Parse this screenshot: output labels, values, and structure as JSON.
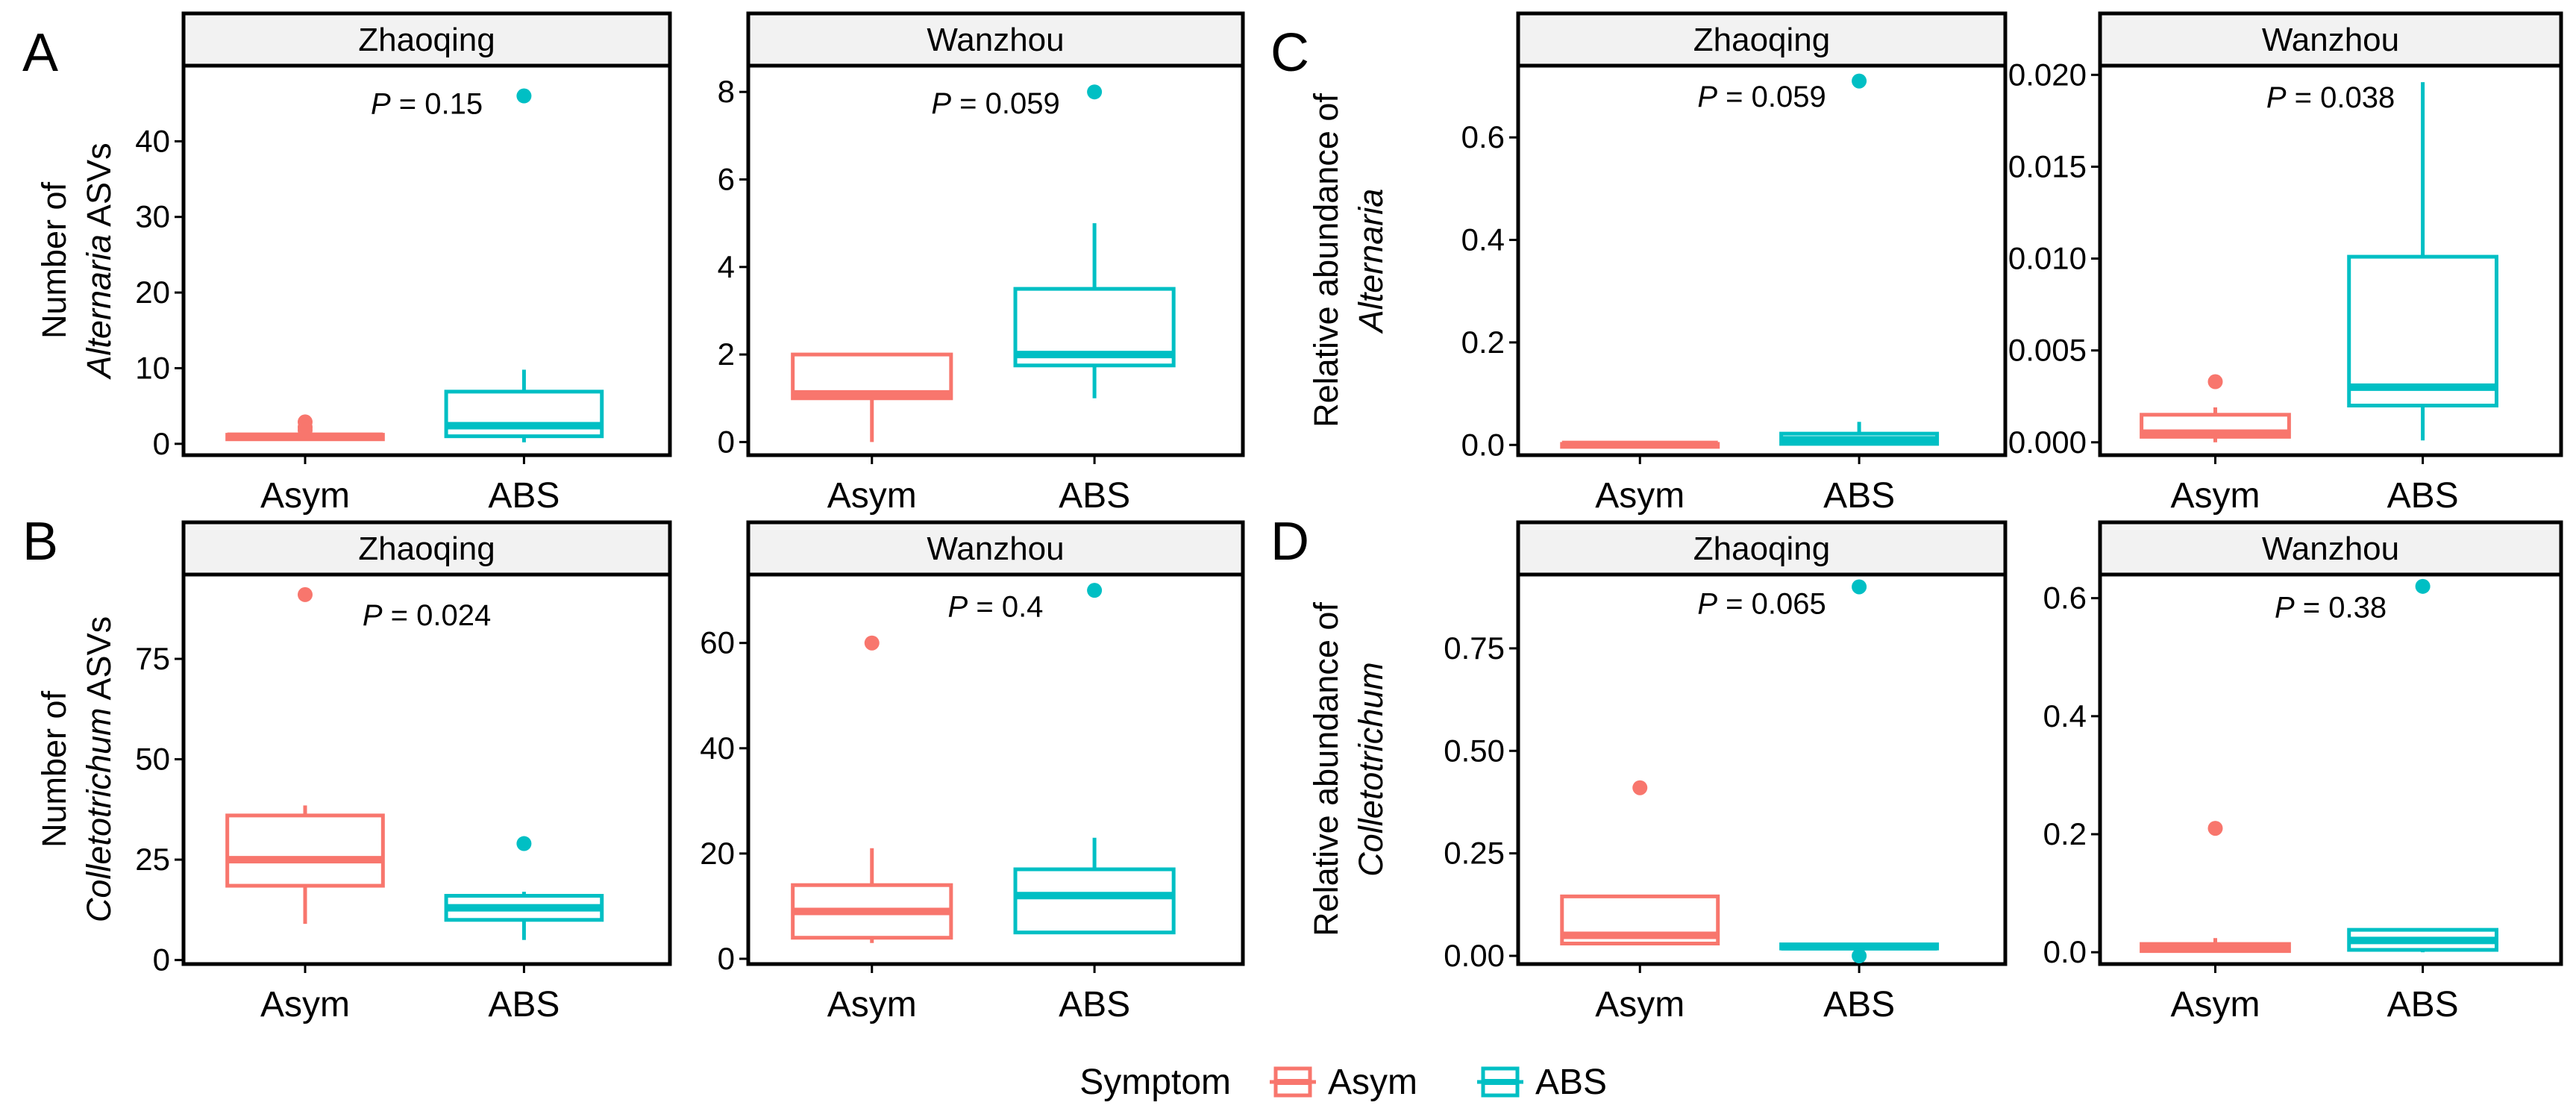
{
  "chart_data": [
    {
      "id": "A-zhaoqing",
      "panel_letter": "A",
      "type": "boxplot",
      "facet": "Zhaoqing",
      "y_title_line1": "Number of",
      "y_title_italic": "Alternaria",
      "y_title_suffix": " ASVs",
      "ylim": [
        -1.5,
        50
      ],
      "yticks": [
        0,
        10,
        20,
        30,
        40
      ],
      "ytick_labels": [
        "0",
        "10",
        "20",
        "30",
        "40"
      ],
      "categories": [
        "Asym",
        "ABS"
      ],
      "p_prefix": "P",
      "p_text": " = 0.15",
      "p_y": 45,
      "boxes": [
        {
          "group": "Asym",
          "whisker_low": 0.5,
          "q1": 0.6,
          "median": 1,
          "q3": 1.2,
          "whisker_high": 1.5,
          "outliers": [
            2.9,
            2.2,
            1.8
          ]
        },
        {
          "group": "ABS",
          "whisker_low": 0.2,
          "q1": 1,
          "median": 2.4,
          "q3": 6.9,
          "whisker_high": 9.8,
          "outliers": [
            46
          ]
        }
      ]
    },
    {
      "id": "A-wanzhou",
      "type": "boxplot",
      "facet": "Wanzhou",
      "ylim": [
        -0.3,
        8.6
      ],
      "yticks": [
        0,
        2,
        4,
        6,
        8
      ],
      "ytick_labels": [
        "0",
        "2",
        "4",
        "6",
        "8"
      ],
      "categories": [
        "Asym",
        "ABS"
      ],
      "p_prefix": "P",
      "p_text": " = 0.059",
      "p_y": 7.75,
      "boxes": [
        {
          "group": "Asym",
          "whisker_low": 0,
          "q1": 1,
          "median": 1.1,
          "q3": 2,
          "whisker_high": 2,
          "outliers": []
        },
        {
          "group": "ABS",
          "whisker_low": 1,
          "q1": 1.75,
          "median": 2,
          "q3": 3.5,
          "whisker_high": 5,
          "outliers": [
            8
          ]
        }
      ]
    },
    {
      "id": "C-zhaoqing",
      "panel_letter": "C",
      "type": "boxplot",
      "facet": "Zhaoqing",
      "y_title_line1": "Relative abundance of",
      "y_title_italic": "Alternaria",
      "ylim": [
        -0.02,
        0.74
      ],
      "yticks": [
        0,
        0.2,
        0.4,
        0.6
      ],
      "ytick_labels": [
        "0.0",
        "0.2",
        "0.4",
        "0.6"
      ],
      "categories": [
        "Asym",
        "ABS"
      ],
      "p_prefix": "P",
      "p_text": " = 0.059",
      "p_y": 0.68,
      "boxes": [
        {
          "group": "Asym",
          "whisker_low": 0,
          "q1": 0,
          "median": 0.001,
          "q3": 0.002,
          "whisker_high": 0.004,
          "outliers": []
        },
        {
          "group": "ABS",
          "whisker_low": 0,
          "q1": 0.002,
          "median": 0.01,
          "q3": 0.022,
          "whisker_high": 0.045,
          "outliers": [
            0.71
          ]
        }
      ]
    },
    {
      "id": "C-wanzhou",
      "type": "boxplot",
      "facet": "Wanzhou",
      "ylim": [
        -0.0007,
        0.0205
      ],
      "yticks": [
        0,
        0.005,
        0.01,
        0.015,
        0.02
      ],
      "ytick_labels": [
        "0.000",
        "0.005",
        "0.010",
        "0.015",
        "0.020"
      ],
      "categories": [
        "Asym",
        "ABS"
      ],
      "p_prefix": "P",
      "p_text": " = 0.038",
      "p_y": 0.0188,
      "boxes": [
        {
          "group": "Asym",
          "whisker_low": 0,
          "q1": 0.0003,
          "median": 0.0005,
          "q3": 0.0015,
          "whisker_high": 0.0019,
          "outliers": [
            0.0033
          ]
        },
        {
          "group": "ABS",
          "whisker_low": 0.0001,
          "q1": 0.002,
          "median": 0.003,
          "q3": 0.0101,
          "whisker_high": 0.0196,
          "outliers": []
        }
      ]
    },
    {
      "id": "B-zhaoqing",
      "panel_letter": "B",
      "type": "boxplot",
      "facet": "Zhaoqing",
      "y_title_line1": "Number of",
      "y_title_italic": "Colletotrichum",
      "y_title_suffix": " ASVs",
      "ylim": [
        -1,
        96
      ],
      "yticks": [
        0,
        25,
        50,
        75
      ],
      "ytick_labels": [
        "0",
        "25",
        "50",
        "75"
      ],
      "categories": [
        "Asym",
        "ABS"
      ],
      "p_prefix": "P",
      "p_text": " = 0.024",
      "p_y": 86,
      "boxes": [
        {
          "group": "Asym",
          "whisker_low": 9,
          "q1": 18.5,
          "median": 25,
          "q3": 36,
          "whisker_high": 38.5,
          "outliers": [
            91
          ]
        },
        {
          "group": "ABS",
          "whisker_low": 5,
          "q1": 10,
          "median": 13,
          "q3": 16,
          "whisker_high": 17,
          "outliers": [
            29
          ]
        }
      ]
    },
    {
      "id": "B-wanzhou",
      "type": "boxplot",
      "facet": "Wanzhou",
      "ylim": [
        -1,
        73
      ],
      "yticks": [
        0,
        20,
        40,
        60
      ],
      "ytick_labels": [
        "0",
        "20",
        "40",
        "60"
      ],
      "categories": [
        "Asym",
        "ABS"
      ],
      "p_prefix": "P",
      "p_text": " = 0.4",
      "p_y": 67,
      "boxes": [
        {
          "group": "Asym",
          "whisker_low": 3,
          "q1": 4,
          "median": 9,
          "q3": 14,
          "whisker_high": 21,
          "outliers": [
            60
          ]
        },
        {
          "group": "ABS",
          "whisker_low": 5,
          "q1": 5,
          "median": 12,
          "q3": 17,
          "whisker_high": 23,
          "outliers": [
            70
          ]
        }
      ]
    },
    {
      "id": "D-zhaoqing",
      "panel_letter": "D",
      "type": "boxplot",
      "facet": "Zhaoqing",
      "y_title_line1": "Relative abundance of",
      "y_title_italic": "Colletotrichum",
      "ylim": [
        -0.02,
        0.93
      ],
      "yticks": [
        0,
        0.25,
        0.5,
        0.75
      ],
      "ytick_labels": [
        "0.00",
        "0.25",
        "0.50",
        "0.75"
      ],
      "categories": [
        "Asym",
        "ABS"
      ],
      "p_prefix": "P",
      "p_text": " = 0.065",
      "p_y": 0.86,
      "boxes": [
        {
          "group": "Asym",
          "whisker_low": 0.03,
          "q1": 0.03,
          "median": 0.05,
          "q3": 0.145,
          "whisker_high": 0.145,
          "outliers": [
            0.41
          ]
        },
        {
          "group": "ABS",
          "whisker_low": 0.015,
          "q1": 0.018,
          "median": 0.022,
          "q3": 0.028,
          "whisker_high": 0.03,
          "outliers": [
            0.9,
            0.0
          ]
        }
      ]
    },
    {
      "id": "D-wanzhou",
      "type": "boxplot",
      "facet": "Wanzhou",
      "ylim": [
        -0.02,
        0.64
      ],
      "yticks": [
        0,
        0.2,
        0.4,
        0.6
      ],
      "ytick_labels": [
        "0.0",
        "0.2",
        "0.4",
        "0.6"
      ],
      "categories": [
        "Asym",
        "ABS"
      ],
      "p_prefix": "P",
      "p_text": " = 0.38",
      "p_y": 0.585,
      "boxes": [
        {
          "group": "Asym",
          "whisker_low": 0,
          "q1": 0.002,
          "median": 0.008,
          "q3": 0.014,
          "whisker_high": 0.024,
          "outliers": [
            0.21
          ]
        },
        {
          "group": "ABS",
          "whisker_low": 0,
          "q1": 0.004,
          "median": 0.02,
          "q3": 0.038,
          "whisker_high": 0.038,
          "outliers": [
            0.62
          ]
        }
      ]
    }
  ],
  "legend": {
    "title": "Symptom",
    "items": [
      {
        "label": "Asym",
        "color": "#F8766D"
      },
      {
        "label": "ABS",
        "color": "#00BFC4"
      }
    ]
  },
  "colors": {
    "Asym": "#F8766D",
    "ABS": "#00BFC4",
    "strip_fill": "#F2F2F2",
    "frame": "#000000"
  }
}
